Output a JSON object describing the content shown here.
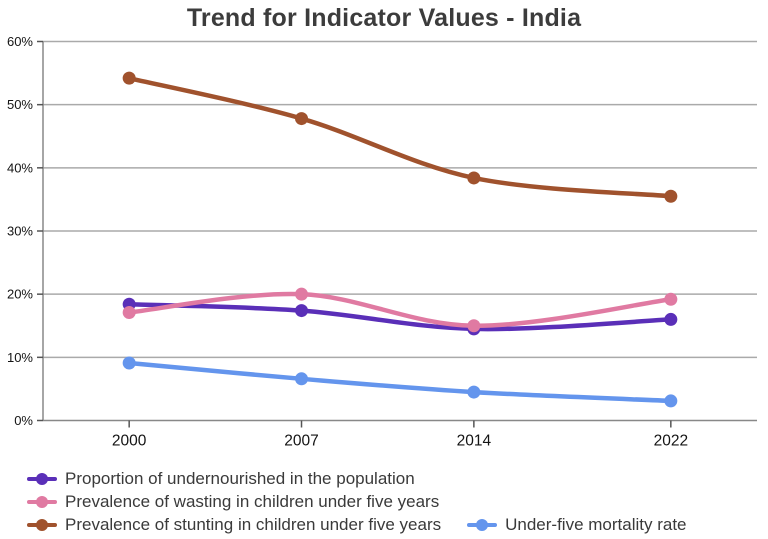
{
  "page": {
    "background": "#ffffff"
  },
  "chart": {
    "title": "Trend for Indicator Values - India",
    "title_color": "#3c3c3c"
  },
  "chart_data": {
    "type": "line",
    "title": "Trend for Indicator Values - India",
    "categories": [
      "2000",
      "2007",
      "2014",
      "2022"
    ],
    "x": [
      2000,
      2007,
      2014,
      2022
    ],
    "series": [
      {
        "id": "undernourished",
        "name": "Proportion of undernourished in the population",
        "color": "#5a2fb8",
        "values": [
          18.4,
          17.4,
          14.5,
          16.0
        ]
      },
      {
        "id": "wasting",
        "name": "Prevalence of wasting in children under five years",
        "color": "#e07aa2",
        "values": [
          17.1,
          20.0,
          15.0,
          19.2
        ]
      },
      {
        "id": "stunting",
        "name": "Prevalence of stunting in children under five years",
        "color": "#a0522d",
        "values": [
          54.2,
          47.8,
          38.4,
          35.5
        ]
      },
      {
        "id": "u5mr",
        "name": "Under-five mortality rate",
        "color": "#6495ed",
        "values": [
          9.1,
          6.6,
          4.5,
          3.1
        ]
      }
    ],
    "xlabel": "",
    "ylabel": "",
    "ylim": [
      0,
      60
    ],
    "xlim": [
      1996.5,
      2025.5
    ],
    "yticks": [
      0,
      10,
      20,
      30,
      40,
      50,
      60
    ],
    "ytick_suffix": "%",
    "grid": true,
    "smooth": true,
    "legend_position": "bottom-left",
    "style": {
      "grid_color": "#aaaaaa",
      "axis_color": "#888888",
      "tick_color": "#555555",
      "line_width": 4.5,
      "marker_radius": 6.5
    }
  }
}
